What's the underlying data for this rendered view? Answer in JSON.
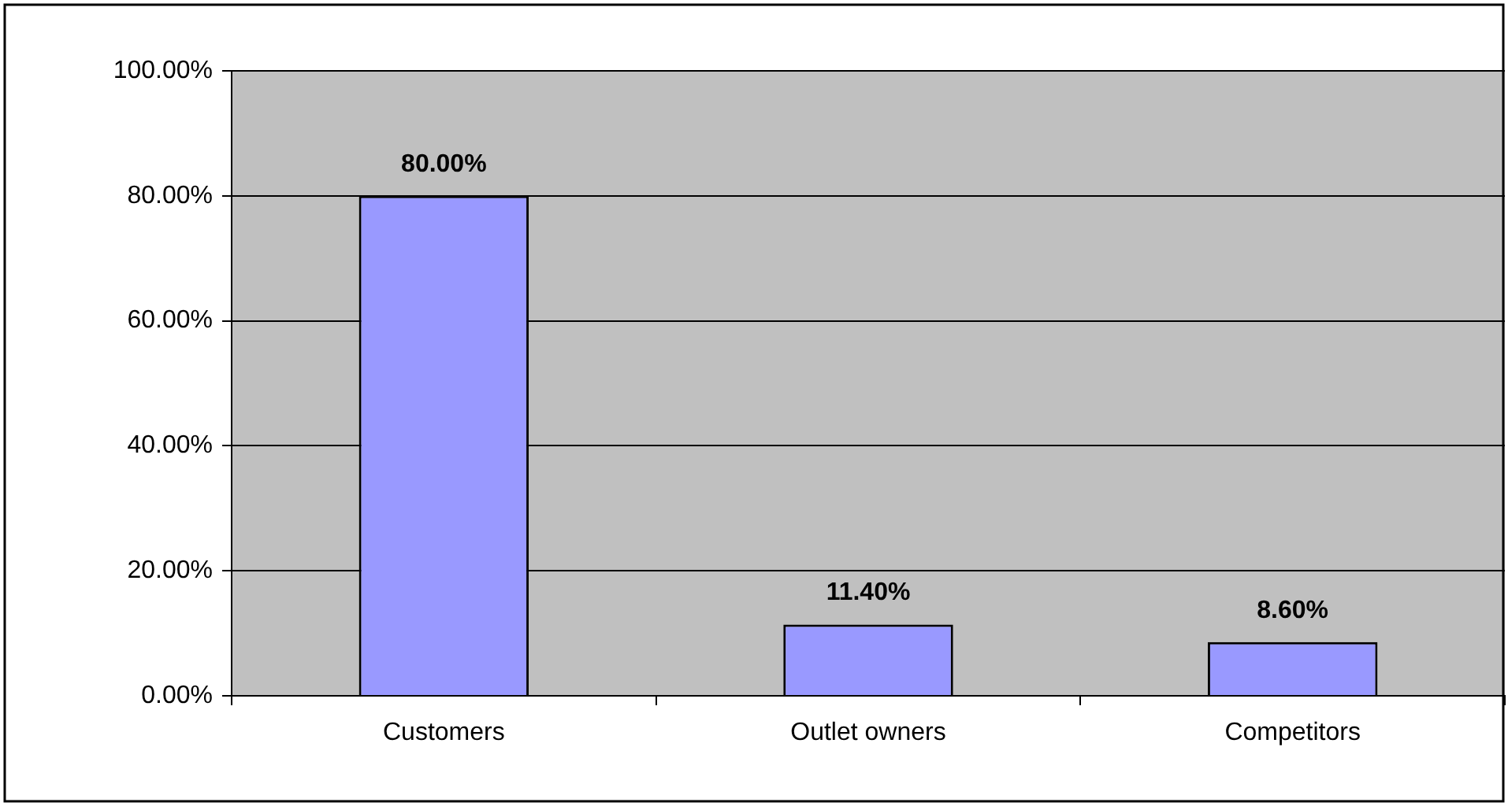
{
  "chart_data": {
    "type": "bar",
    "categories": [
      "Customers",
      "Outlet owners",
      "Competitors"
    ],
    "values": [
      80,
      11.4,
      8.6
    ],
    "value_labels": [
      "80.00%",
      "11.40%",
      "8.60%"
    ],
    "color": "#9999ff",
    "ylim": [
      0,
      100
    ],
    "yticks": [
      {
        "value": 0,
        "label": "0.00%"
      },
      {
        "value": 20,
        "label": "20.00%"
      },
      {
        "value": 40,
        "label": "40.00%"
      },
      {
        "value": 60,
        "label": "60.00%"
      },
      {
        "value": 80,
        "label": "80.00%"
      },
      {
        "value": 100,
        "label": "100.00%"
      }
    ],
    "grid": "y",
    "legend": false
  }
}
